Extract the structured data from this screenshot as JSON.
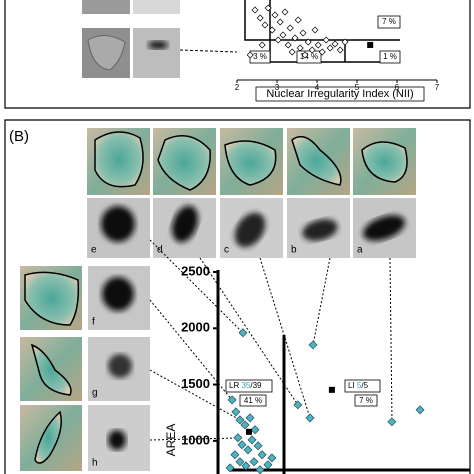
{
  "panel_label": "(B)",
  "image_labels": [
    "e",
    "d",
    "c",
    "b",
    "a",
    "f",
    "g",
    "h"
  ],
  "chart_data": [
    {
      "type": "scatter",
      "xlabel": "Nuclear Irregularity Index (NII)",
      "xlim": [
        2,
        7
      ],
      "xticks": [
        2,
        3,
        4,
        5,
        6,
        7
      ],
      "ylim": [
        0,
        100
      ],
      "annotations": [
        "7 %",
        "3 %",
        "14 %",
        "1 %"
      ],
      "color": "#ffffff",
      "x": [
        2.45,
        2.58,
        2.7,
        2.78,
        2.88,
        2.95,
        3.03,
        3.08,
        3.15,
        3.2,
        3.28,
        3.33,
        3.38,
        3.45,
        3.53,
        3.58,
        3.65,
        3.7,
        3.78,
        3.88,
        3.95,
        4.03,
        4.13,
        4.23,
        4.33,
        4.45,
        4.58,
        4.7,
        2.63,
        2.33
      ],
      "values": [
        87.5,
        77.5,
        68.8,
        90,
        62.5,
        81.3,
        50,
        72.5,
        56.3,
        85,
        43.8,
        65,
        35,
        52.5,
        75,
        40,
        58.8,
        31.3,
        47.5,
        37.5,
        62.5,
        43.8,
        35,
        50,
        40,
        45,
        37.5,
        47.5,
        43.8,
        31.3
      ],
      "markers": [
        {
          "x": 5.33,
          "y": 43.8
        }
      ]
    },
    {
      "type": "scatter",
      "ylabel": "AREA",
      "xlim": [
        0,
        100
      ],
      "ylim": [
        700,
        2500
      ],
      "yticks": [
        1000,
        1500,
        2000,
        2500
      ],
      "annotations": [
        "LR ",
        "35",
        "/39",
        "41 %",
        "LI ",
        "5",
        "/5",
        "7 %"
      ],
      "color": "#4fb3bf",
      "x": [
        9.9,
        37.7,
        31.7,
        36.5,
        69.0,
        80.2,
        5.6,
        7.1,
        8.7,
        10.7,
        12.7,
        14.7,
        7.9,
        9.5,
        11.9,
        13.5,
        15.9,
        17.5,
        6.7,
        8.7,
        11.1,
        14.3,
        16.7,
        19.8,
        21.4,
        4.8
      ],
      "values": [
        1960,
        1852,
        1320,
        1204,
        1169,
        1275,
        1364,
        1257,
        1186,
        1142,
        1204,
        1098,
        1027,
        965,
        920,
        1009,
        956,
        876,
        876,
        814,
        778,
        814,
        743,
        787,
        849,
        760
      ],
      "markers": [
        {
          "x": 45.2,
          "y": 1453
        },
        {
          "x": 12.3,
          "y": 1080
        }
      ]
    }
  ]
}
